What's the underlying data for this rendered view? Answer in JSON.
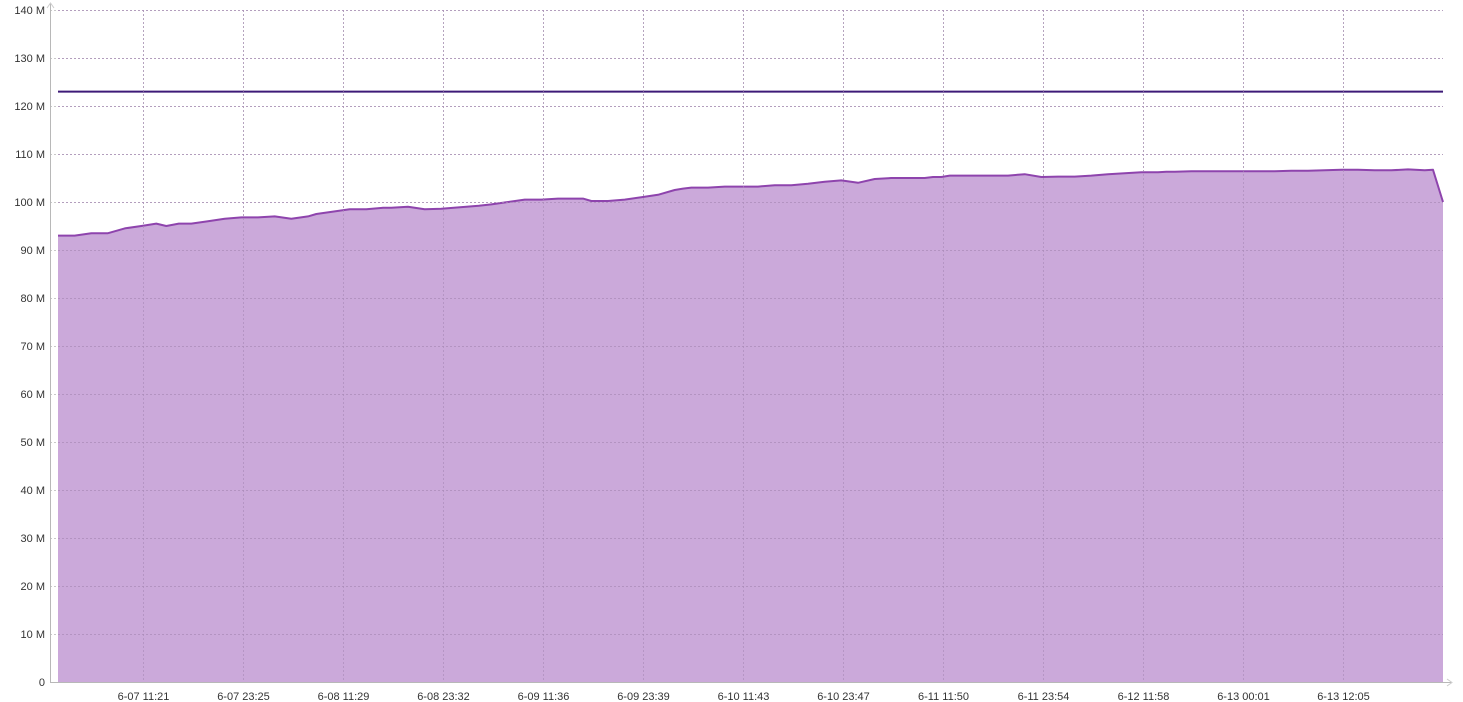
{
  "chart_data": {
    "type": "area",
    "title": "",
    "xlabel": "",
    "ylabel": "",
    "ylim": [
      0,
      140
    ],
    "y_ticks": [
      0,
      10,
      20,
      30,
      40,
      50,
      60,
      70,
      80,
      90,
      100,
      110,
      120,
      130,
      140
    ],
    "y_tick_labels": [
      "0",
      "10 M",
      "20 M",
      "30 M",
      "40 M",
      "50 M",
      "60 M",
      "70 M",
      "80 M",
      "90 M",
      "100 M",
      "110 M",
      "120 M",
      "130 M",
      "140 M"
    ],
    "y_unit": "M",
    "x_tick_labels": [
      "6-07 11:21",
      "6-07 23:25",
      "6-08 11:29",
      "6-08 23:32",
      "6-09 11:36",
      "6-09 23:39",
      "6-10 11:43",
      "6-10 23:47",
      "6-11 11:50",
      "6-11 23:54",
      "6-12 11:58",
      "6-13 00:01",
      "6-13 12:05"
    ],
    "x_range_hours": [
      0,
      166.2
    ],
    "x_tick_hours": [
      10.2,
      22.2,
      34.2,
      46.2,
      58.2,
      70.2,
      82.2,
      94.2,
      106.2,
      118.2,
      130.2,
      142.2,
      154.2
    ],
    "grid": true,
    "colors": {
      "area_fill": "#c8a4d8",
      "area_line": "#8e44ad",
      "threshold_line": "#3d1a78"
    },
    "series": [
      {
        "kind": "threshold",
        "values": [
          123,
          123
        ]
      },
      {
        "kind": "area",
        "x": [
          0,
          2,
          4,
          6,
          8,
          10,
          11.8,
          13,
          14.5,
          16,
          18,
          20,
          22,
          24,
          26,
          28,
          30,
          31,
          33,
          35,
          37,
          39,
          40,
          42,
          44,
          46,
          47.5,
          49,
          50.5,
          52,
          54,
          56,
          58,
          60,
          62,
          63,
          64,
          66,
          68,
          70,
          72,
          74,
          75,
          76,
          78,
          80,
          82,
          84,
          86,
          87,
          88,
          90,
          92,
          94,
          96,
          98,
          100,
          102,
          104,
          105,
          106,
          107,
          108,
          110,
          112,
          114,
          116,
          118,
          120,
          122,
          124,
          126,
          128,
          130,
          132,
          133,
          134,
          136,
          138,
          140,
          142,
          144,
          146,
          148,
          150,
          152,
          154,
          156,
          158,
          160,
          162,
          164,
          165,
          166.2
        ],
        "values": [
          93,
          93,
          93.5,
          93.5,
          94.5,
          95,
          95.5,
          95,
          95.5,
          95.5,
          96,
          96.5,
          96.8,
          96.8,
          97,
          96.5,
          97,
          97.5,
          98,
          98.5,
          98.5,
          98.8,
          98.8,
          99,
          98.5,
          98.6,
          98.8,
          99,
          99.2,
          99.5,
          100,
          100.5,
          100.5,
          100.7,
          100.7,
          100.7,
          100.2,
          100.2,
          100.5,
          101,
          101.5,
          102.5,
          102.8,
          103,
          103,
          103.2,
          103.2,
          103.2,
          103.5,
          103.5,
          103.5,
          103.8,
          104.2,
          104.5,
          104,
          104.8,
          105,
          105,
          105,
          105.2,
          105.2,
          105.5,
          105.5,
          105.5,
          105.5,
          105.5,
          105.8,
          105.2,
          105.3,
          105.3,
          105.5,
          105.8,
          106,
          106.2,
          106.2,
          106.3,
          106.3,
          106.4,
          106.4,
          106.4,
          106.4,
          106.4,
          106.4,
          106.5,
          106.5,
          106.6,
          106.7,
          106.7,
          106.6,
          106.6,
          106.8,
          106.6,
          106.7,
          100
        ]
      }
    ]
  }
}
